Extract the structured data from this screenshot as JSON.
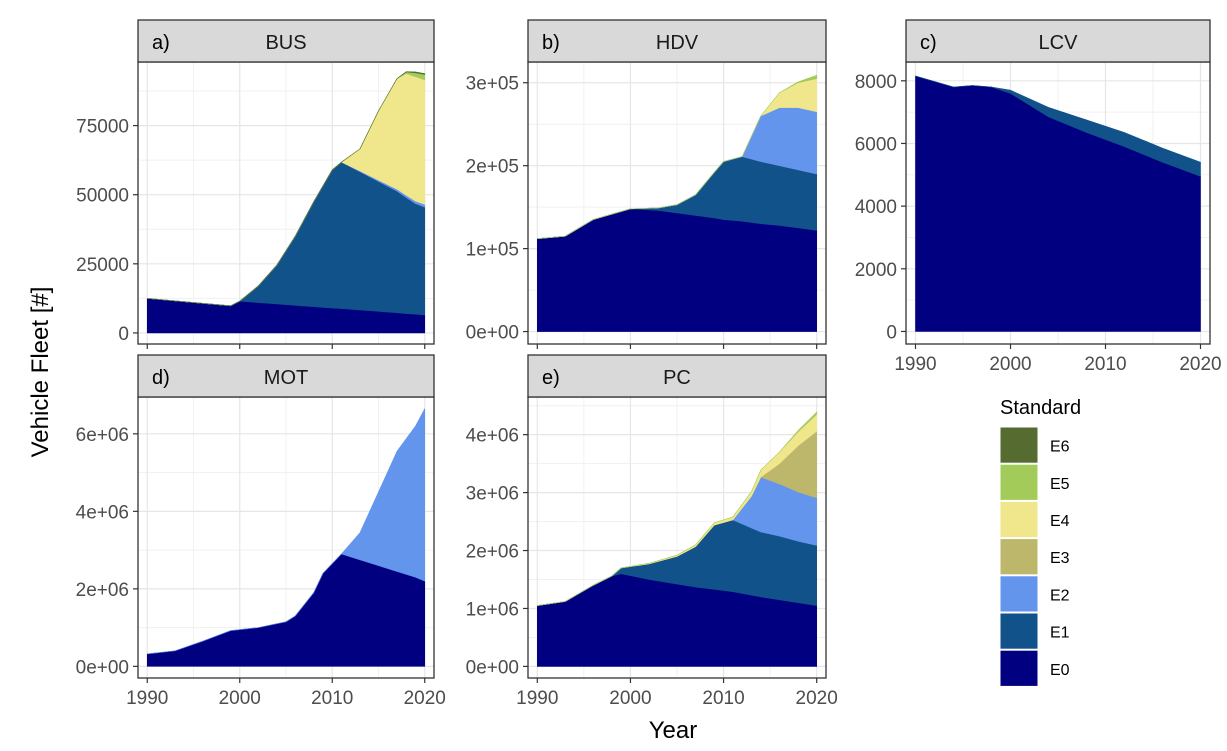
{
  "figure": {
    "ylabel": "Vehicle Fleet [#]",
    "xlabel": "Year"
  },
  "legend": {
    "title": "Standard",
    "placement": "right",
    "items": [
      {
        "label": "E6",
        "color": "#556B2F"
      },
      {
        "label": "E5",
        "color": "#A3CB5A"
      },
      {
        "label": "E4",
        "color": "#F0E68C"
      },
      {
        "label": "E3",
        "color": "#BDB76B"
      },
      {
        "label": "E2",
        "color": "#6495ED"
      },
      {
        "label": "E1",
        "color": "#11528A"
      },
      {
        "label": "E0",
        "color": "#000080"
      }
    ]
  },
  "chart_data": [
    {
      "type": "area",
      "panel_tag": "a)",
      "title": "BUS",
      "x": [
        1990,
        1999,
        2000,
        2002,
        2004,
        2006,
        2008,
        2010,
        2011,
        2013,
        2015,
        2017,
        2018,
        2019,
        2020
      ],
      "xlim": [
        1989,
        2021
      ],
      "ylim": [
        -4000,
        98000
      ],
      "yticks": [
        0,
        25000,
        50000,
        75000
      ],
      "ytick_labels": [
        "0",
        "25000",
        "50000",
        "75000"
      ],
      "series": [
        {
          "name": "E0",
          "values": [
            12500,
            9800,
            11500,
            11000,
            10500,
            10000,
            9500,
            9000,
            8800,
            8300,
            7800,
            7300,
            7000,
            6800,
            6500
          ]
        },
        {
          "name": "E1",
          "values": [
            0,
            0,
            0,
            6000,
            14000,
            25000,
            38000,
            50000,
            53000,
            50000,
            47000,
            44000,
            42000,
            40000,
            39000
          ]
        },
        {
          "name": "E2",
          "values": [
            0,
            0,
            0,
            0,
            0,
            0,
            0,
            0,
            0,
            300,
            500,
            700,
            800,
            900,
            1000
          ]
        },
        {
          "name": "E3",
          "values": [
            0,
            0,
            0,
            0,
            0,
            0,
            0,
            0,
            0,
            0,
            0,
            0,
            0,
            0,
            0
          ]
        },
        {
          "name": "E4",
          "values": [
            0,
            0,
            0,
            0,
            0,
            0,
            0,
            0,
            0,
            8000,
            25000,
            40000,
            44000,
            45000,
            45000
          ]
        },
        {
          "name": "E5",
          "values": [
            0,
            0,
            0,
            0,
            0,
            0,
            0,
            0,
            0,
            0,
            0,
            0,
            600,
            1400,
            2000
          ]
        },
        {
          "name": "E6",
          "values": [
            0,
            0,
            0,
            0,
            0,
            0,
            0,
            0,
            0,
            0,
            0,
            0,
            100,
            300,
            300
          ]
        }
      ]
    },
    {
      "type": "area",
      "panel_tag": "b)",
      "title": "HDV",
      "x": [
        1990,
        1993,
        1996,
        2000,
        2003,
        2005,
        2007,
        2009,
        2010,
        2012,
        2014,
        2016,
        2018,
        2020
      ],
      "xlim": [
        1989,
        2021
      ],
      "ylim": [
        -15000,
        325000
      ],
      "yticks": [
        0,
        100000,
        200000,
        300000
      ],
      "ytick_labels": [
        "0e+00",
        "1e+05",
        "2e+05",
        "3e+05"
      ],
      "series": [
        {
          "name": "E0",
          "values": [
            112000,
            115000,
            135000,
            148000,
            146000,
            143000,
            140000,
            137000,
            135000,
            133000,
            130000,
            128000,
            125000,
            122000
          ]
        },
        {
          "name": "E1",
          "values": [
            0,
            0,
            0,
            0,
            3000,
            10000,
            25000,
            55000,
            70000,
            78000,
            75000,
            72000,
            70000,
            68000
          ]
        },
        {
          "name": "E2",
          "values": [
            0,
            0,
            0,
            0,
            0,
            0,
            0,
            0,
            0,
            0,
            55000,
            70000,
            75000,
            75000
          ]
        },
        {
          "name": "E3",
          "values": [
            0,
            0,
            0,
            0,
            0,
            0,
            0,
            0,
            0,
            0,
            0,
            0,
            0,
            0
          ]
        },
        {
          "name": "E4",
          "values": [
            0,
            0,
            0,
            0,
            0,
            0,
            0,
            0,
            0,
            0,
            0,
            18000,
            30000,
            40000
          ]
        },
        {
          "name": "E5",
          "values": [
            0,
            0,
            0,
            0,
            0,
            0,
            0,
            0,
            0,
            0,
            0,
            0,
            1000,
            4000
          ]
        },
        {
          "name": "E6",
          "values": [
            0,
            0,
            0,
            0,
            0,
            0,
            0,
            0,
            0,
            0,
            0,
            0,
            0,
            0
          ]
        }
      ]
    },
    {
      "type": "area",
      "panel_tag": "c)",
      "title": "LCV",
      "x": [
        1990,
        1994,
        1996,
        1998,
        2000,
        2004,
        2008,
        2012,
        2016,
        2020
      ],
      "xlim": [
        1989,
        2021
      ],
      "ylim": [
        -400,
        8600
      ],
      "yticks": [
        0,
        2000,
        4000,
        6000,
        8000
      ],
      "ytick_labels": [
        "0",
        "2000",
        "4000",
        "6000",
        "8000"
      ],
      "x_tick_labels": [
        "1990",
        "2000",
        "2010",
        "2020"
      ],
      "series": [
        {
          "name": "E0",
          "values": [
            8150,
            7800,
            7850,
            7800,
            7600,
            6850,
            6350,
            5900,
            5400,
            4950
          ]
        },
        {
          "name": "E1",
          "values": [
            0,
            0,
            0,
            0,
            100,
            300,
            400,
            450,
            450,
            450
          ]
        },
        {
          "name": "E2",
          "values": [
            0,
            0,
            0,
            0,
            0,
            0,
            0,
            0,
            0,
            0
          ]
        },
        {
          "name": "E3",
          "values": [
            0,
            0,
            0,
            0,
            0,
            0,
            0,
            0,
            0,
            0
          ]
        },
        {
          "name": "E4",
          "values": [
            0,
            0,
            0,
            0,
            0,
            0,
            0,
            0,
            0,
            0
          ]
        },
        {
          "name": "E5",
          "values": [
            0,
            0,
            0,
            0,
            0,
            0,
            0,
            0,
            0,
            0
          ]
        },
        {
          "name": "E6",
          "values": [
            0,
            0,
            0,
            0,
            0,
            0,
            0,
            0,
            0,
            0
          ]
        }
      ]
    },
    {
      "type": "area",
      "panel_tag": "d)",
      "title": "MOT",
      "x": [
        1990,
        1993,
        1996,
        1999,
        2002,
        2005,
        2006,
        2008,
        2009,
        2011,
        2013,
        2015,
        2017,
        2019,
        2020
      ],
      "xlim": [
        1989,
        2021
      ],
      "ylim": [
        -300000,
        6950000
      ],
      "yticks": [
        0,
        2000000,
        4000000,
        6000000
      ],
      "ytick_labels": [
        "0e+00",
        "2e+06",
        "4e+06",
        "6e+06"
      ],
      "x_tick_labels": [
        "1990",
        "2000",
        "2010",
        "2020"
      ],
      "series": [
        {
          "name": "E0",
          "values": [
            320000,
            400000,
            650000,
            920000,
            1000000,
            1150000,
            1300000,
            1900000,
            2400000,
            2900000,
            2750000,
            2600000,
            2450000,
            2300000,
            2200000
          ]
        },
        {
          "name": "E1",
          "values": [
            0,
            0,
            0,
            0,
            0,
            0,
            0,
            0,
            0,
            0,
            0,
            0,
            0,
            0,
            0
          ]
        },
        {
          "name": "E2",
          "values": [
            0,
            0,
            0,
            0,
            0,
            0,
            0,
            0,
            0,
            0,
            700000,
            1900000,
            3100000,
            3900000,
            4450000
          ]
        },
        {
          "name": "E3",
          "values": [
            0,
            0,
            0,
            0,
            0,
            0,
            0,
            0,
            0,
            0,
            0,
            0,
            0,
            0,
            0
          ]
        },
        {
          "name": "E4",
          "values": [
            0,
            0,
            0,
            0,
            0,
            0,
            0,
            0,
            0,
            0,
            0,
            0,
            0,
            0,
            0
          ]
        },
        {
          "name": "E5",
          "values": [
            0,
            0,
            0,
            0,
            0,
            0,
            0,
            0,
            0,
            0,
            0,
            0,
            0,
            0,
            0
          ]
        },
        {
          "name": "E6",
          "values": [
            0,
            0,
            0,
            0,
            0,
            0,
            0,
            0,
            0,
            0,
            0,
            0,
            0,
            0,
            0
          ]
        }
      ]
    },
    {
      "type": "area",
      "panel_tag": "e)",
      "title": "PC",
      "x": [
        1990,
        1993,
        1996,
        1998,
        1999,
        2002,
        2005,
        2007,
        2009,
        2011,
        2013,
        2014,
        2016,
        2018,
        2020
      ],
      "xlim": [
        1989,
        2021
      ],
      "ylim": [
        -200000,
        4650000
      ],
      "yticks": [
        0,
        1000000,
        2000000,
        3000000,
        4000000
      ],
      "ytick_labels": [
        "0e+00",
        "1e+06",
        "2e+06",
        "3e+06",
        "4e+06"
      ],
      "x_tick_labels": [
        "1990",
        "2000",
        "2010",
        "2020"
      ],
      "series": [
        {
          "name": "E0",
          "values": [
            1050000,
            1120000,
            1400000,
            1560000,
            1600000,
            1500000,
            1420000,
            1370000,
            1330000,
            1290000,
            1230000,
            1200000,
            1150000,
            1100000,
            1050000
          ]
        },
        {
          "name": "E1",
          "values": [
            0,
            0,
            0,
            0,
            100000,
            270000,
            480000,
            700000,
            1110000,
            1240000,
            1160000,
            1120000,
            1100000,
            1060000,
            1040000
          ]
        },
        {
          "name": "E2",
          "values": [
            0,
            0,
            0,
            0,
            0,
            0,
            0,
            0,
            0,
            0,
            550000,
            950000,
            900000,
            850000,
            820000
          ]
        },
        {
          "name": "E3",
          "values": [
            0,
            0,
            0,
            0,
            0,
            0,
            0,
            0,
            0,
            0,
            0,
            0,
            350000,
            800000,
            1150000
          ]
        },
        {
          "name": "E4",
          "values": [
            0,
            0,
            0,
            0,
            0,
            10000,
            20000,
            30000,
            40000,
            50000,
            80000,
            120000,
            200000,
            240000,
            290000
          ]
        },
        {
          "name": "E5",
          "values": [
            0,
            0,
            0,
            0,
            0,
            0,
            0,
            0,
            0,
            0,
            0,
            0,
            0,
            20000,
            40000
          ]
        },
        {
          "name": "E6",
          "values": [
            0,
            0,
            0,
            0,
            0,
            0,
            0,
            0,
            0,
            0,
            0,
            0,
            0,
            0,
            0
          ]
        }
      ]
    }
  ]
}
